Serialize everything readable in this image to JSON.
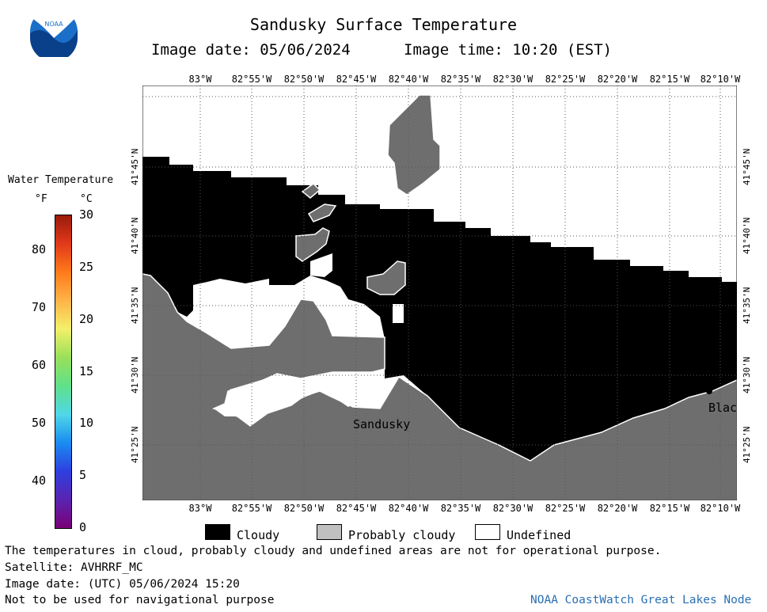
{
  "header": {
    "title": "Sandusky Surface Temperature",
    "image_date_label": "Image date: 05/06/2024",
    "image_time_label": "Image time: 10:20 (EST)"
  },
  "logo": {
    "text": "NOAA",
    "icon": "noaa-logo-icon"
  },
  "colorbar": {
    "title": "Water Temperature",
    "unit_f": "°F",
    "unit_c": "°C",
    "ticks_f": [
      {
        "v": 40,
        "label": "40"
      },
      {
        "v": 50,
        "label": "50"
      },
      {
        "v": 60,
        "label": "60"
      },
      {
        "v": 70,
        "label": "70"
      },
      {
        "v": 80,
        "label": "80"
      }
    ],
    "ticks_c": [
      {
        "v": 0,
        "label": "0"
      },
      {
        "v": 5,
        "label": "5"
      },
      {
        "v": 10,
        "label": "10"
      },
      {
        "v": 15,
        "label": "15"
      },
      {
        "v": 20,
        "label": "20"
      },
      {
        "v": 25,
        "label": "25"
      },
      {
        "v": 30,
        "label": "30"
      }
    ],
    "range_c": [
      0,
      30
    ],
    "colors": [
      "#7a0077",
      "#5a23b0",
      "#2e3fe0",
      "#1a8cf0",
      "#4fd8e8",
      "#5fe08a",
      "#9ae05a",
      "#f3f06a",
      "#ffb347",
      "#ff7a1a",
      "#e03a1a",
      "#9a1a0a"
    ]
  },
  "map": {
    "top_lon_labels": [
      "83°W",
      "82°55'W",
      "82°50'W",
      "82°45'W",
      "82°40'W",
      "82°35'W",
      "82°30'W",
      "82°25'W",
      "82°20'W",
      "82°15'W",
      "82°10'W"
    ],
    "bottom_lon_labels": [
      "83°W",
      "82°55'W",
      "82°50'W",
      "82°45'W",
      "82°40'W",
      "82°35'W",
      "82°30'W",
      "82°25'W",
      "82°20'W",
      "82°15'W",
      "82°10'W"
    ],
    "lat_labels": [
      "41°45'N",
      "41°40'N",
      "41°35'N",
      "41°30'N",
      "41°25'N"
    ],
    "place_labels": {
      "sandusky": "Sandusky",
      "blac": "Blac"
    },
    "colors": {
      "cloudy": "#000000",
      "probably_cloudy": "#6e6e6e",
      "undefined": "#ffffff",
      "grid": "#555555"
    }
  },
  "legend": {
    "cloudy": "Cloudy",
    "probably_cloudy": "Probably cloudy",
    "undefined": "Undefined"
  },
  "footer": {
    "note": "The temperatures in cloud, probably cloudy and undefined areas are not for operational purpose.",
    "satellite": "Satellite: AVHRRF_MC",
    "utc_date": "Image date: (UTC) 05/06/2024  15:20",
    "nav_warning": "Not to be used for navigational purpose",
    "credit": "NOAA CoastWatch Great Lakes Node"
  }
}
